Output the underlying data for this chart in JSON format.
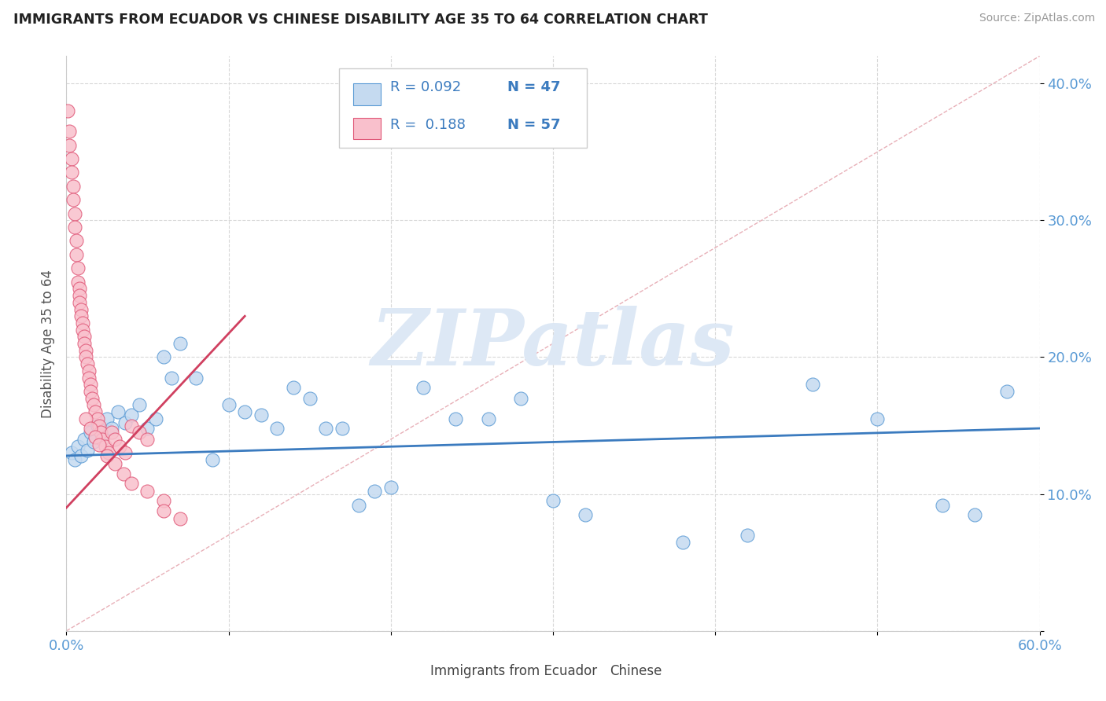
{
  "title": "IMMIGRANTS FROM ECUADOR VS CHINESE DISABILITY AGE 35 TO 64 CORRELATION CHART",
  "source": "Source: ZipAtlas.com",
  "ylabel": "Disability Age 35 to 64",
  "xlim": [
    0.0,
    0.6
  ],
  "ylim": [
    0.0,
    0.42
  ],
  "legend_r1": "R = 0.092",
  "legend_n1": "N = 47",
  "legend_r2": "R =  0.188",
  "legend_n2": "N = 57",
  "blue_fill": "#c5daf0",
  "blue_edge": "#5b9bd5",
  "pink_fill": "#f9c0cc",
  "pink_edge": "#e05878",
  "blue_line": "#3b7bbf",
  "pink_line": "#d04060",
  "ref_line_color": "#e8b0b8",
  "legend_rv_color": "#3b7bbf",
  "legend_nv_color": "#3b7bbf",
  "watermark": "ZIPatlas",
  "watermark_color": "#dde8f5",
  "background_color": "#ffffff",
  "grid_color": "#d8d8d8",
  "tick_color": "#5b9bd5",
  "blue_scatter_x": [
    0.003,
    0.005,
    0.007,
    0.009,
    0.011,
    0.013,
    0.015,
    0.017,
    0.019,
    0.022,
    0.025,
    0.028,
    0.032,
    0.036,
    0.04,
    0.045,
    0.05,
    0.055,
    0.06,
    0.065,
    0.07,
    0.08,
    0.09,
    0.1,
    0.11,
    0.12,
    0.13,
    0.14,
    0.15,
    0.16,
    0.17,
    0.18,
    0.19,
    0.2,
    0.22,
    0.24,
    0.26,
    0.28,
    0.3,
    0.32,
    0.38,
    0.42,
    0.46,
    0.5,
    0.54,
    0.56,
    0.58
  ],
  "blue_scatter_y": [
    0.13,
    0.125,
    0.135,
    0.128,
    0.14,
    0.132,
    0.145,
    0.138,
    0.15,
    0.142,
    0.155,
    0.148,
    0.16,
    0.152,
    0.158,
    0.165,
    0.148,
    0.155,
    0.2,
    0.185,
    0.21,
    0.185,
    0.125,
    0.165,
    0.16,
    0.158,
    0.148,
    0.178,
    0.17,
    0.148,
    0.148,
    0.092,
    0.102,
    0.105,
    0.178,
    0.155,
    0.155,
    0.17,
    0.095,
    0.085,
    0.065,
    0.07,
    0.18,
    0.155,
    0.092,
    0.085,
    0.175
  ],
  "pink_scatter_x": [
    0.001,
    0.002,
    0.002,
    0.003,
    0.003,
    0.004,
    0.004,
    0.005,
    0.005,
    0.006,
    0.006,
    0.007,
    0.007,
    0.008,
    0.008,
    0.008,
    0.009,
    0.009,
    0.01,
    0.01,
    0.011,
    0.011,
    0.012,
    0.012,
    0.013,
    0.014,
    0.014,
    0.015,
    0.015,
    0.016,
    0.017,
    0.018,
    0.019,
    0.02,
    0.021,
    0.022,
    0.024,
    0.026,
    0.028,
    0.03,
    0.033,
    0.036,
    0.04,
    0.045,
    0.05,
    0.06,
    0.012,
    0.015,
    0.018,
    0.02,
    0.025,
    0.03,
    0.035,
    0.04,
    0.05,
    0.06,
    0.07
  ],
  "pink_scatter_y": [
    0.38,
    0.365,
    0.355,
    0.345,
    0.335,
    0.325,
    0.315,
    0.305,
    0.295,
    0.285,
    0.275,
    0.265,
    0.255,
    0.25,
    0.245,
    0.24,
    0.235,
    0.23,
    0.225,
    0.22,
    0.215,
    0.21,
    0.205,
    0.2,
    0.195,
    0.19,
    0.185,
    0.18,
    0.175,
    0.17,
    0.165,
    0.16,
    0.155,
    0.15,
    0.145,
    0.14,
    0.135,
    0.13,
    0.145,
    0.14,
    0.135,
    0.13,
    0.15,
    0.145,
    0.14,
    0.095,
    0.155,
    0.148,
    0.142,
    0.136,
    0.128,
    0.122,
    0.115,
    0.108,
    0.102,
    0.088,
    0.082
  ],
  "blue_line_x0": 0.0,
  "blue_line_x1": 0.6,
  "blue_line_y0": 0.128,
  "blue_line_y1": 0.148,
  "pink_line_x0": 0.0,
  "pink_line_x1": 0.11,
  "pink_line_y0": 0.09,
  "pink_line_y1": 0.23
}
